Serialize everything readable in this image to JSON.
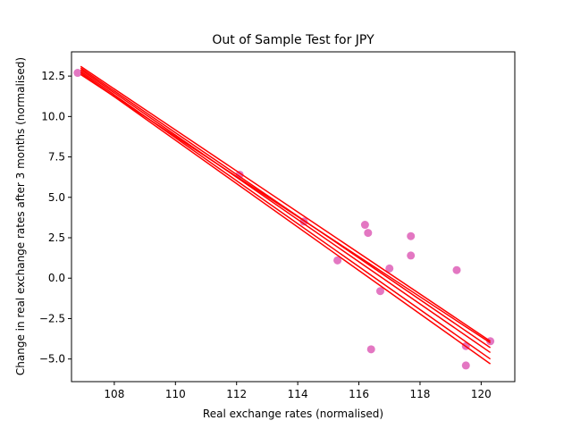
{
  "chart_data": {
    "type": "scatter",
    "title": "Out of Sample Test for JPY",
    "xlabel": "Real exchange rates (normalised)",
    "ylabel": "Change in real exchange rates after 3 months (normalised)",
    "xlim": [
      106.6,
      121.1
    ],
    "ylim": [
      -6.4,
      14.0
    ],
    "xticks": [
      108,
      110,
      112,
      114,
      116,
      118,
      120
    ],
    "yticks": [
      -5.0,
      -2.5,
      0.0,
      2.5,
      5.0,
      7.5,
      10.0,
      12.5
    ],
    "grid": false,
    "series": [
      {
        "kind": "scatter",
        "color": "#e377c2",
        "points": [
          [
            106.8,
            12.7
          ],
          [
            112.1,
            6.4
          ],
          [
            114.2,
            3.5
          ],
          [
            115.3,
            1.1
          ],
          [
            116.2,
            3.3
          ],
          [
            116.3,
            2.8
          ],
          [
            116.4,
            -4.4
          ],
          [
            116.7,
            -0.8
          ],
          [
            117.0,
            0.6
          ],
          [
            117.7,
            2.6
          ],
          [
            117.7,
            1.4
          ],
          [
            119.2,
            0.5
          ],
          [
            119.5,
            -4.2
          ],
          [
            119.5,
            -5.4
          ],
          [
            120.3,
            -3.9
          ]
        ]
      },
      {
        "kind": "lines",
        "color": "#ff0000",
        "x_range": [
          106.9,
          120.3
        ],
        "intercepts_at_x_start": [
          13.1,
          13.0,
          12.9,
          12.8,
          12.7,
          12.6
        ],
        "values_at_x_end": [
          -3.9,
          -4.3,
          -4.6,
          -5.0,
          -5.3,
          -4.0
        ]
      }
    ]
  }
}
